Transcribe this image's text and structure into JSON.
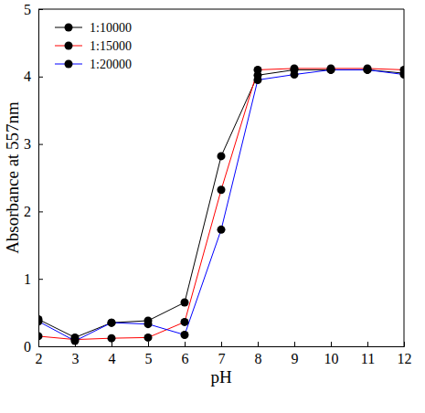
{
  "chart_data": {
    "type": "line",
    "x_label": "pH",
    "y_label": "Absorbance at 557nm",
    "x": [
      2,
      3,
      4,
      5,
      6,
      7,
      8,
      9,
      10,
      11,
      12
    ],
    "series": [
      {
        "name": "1:10000",
        "color": "#000000",
        "marker": "circle",
        "line_style": "solid",
        "values": [
          0.4,
          0.13,
          0.35,
          0.38,
          0.65,
          2.82,
          4.02,
          4.1,
          4.1,
          4.1,
          4.05
        ]
      },
      {
        "name": "1:15000",
        "color": "#ff0000",
        "marker": "circle",
        "line_style": "solid",
        "values": [
          0.15,
          0.1,
          0.12,
          0.13,
          0.36,
          2.32,
          4.1,
          4.12,
          4.12,
          4.12,
          4.1
        ]
      },
      {
        "name": "1:20000",
        "color": "#0000ff",
        "marker": "circle",
        "line_style": "solid",
        "values": [
          0.37,
          0.08,
          0.35,
          0.33,
          0.17,
          1.73,
          3.95,
          4.03,
          4.1,
          4.1,
          4.03
        ]
      }
    ],
    "xlim": [
      2,
      12
    ],
    "ylim": [
      0,
      5
    ],
    "xticks": [
      2,
      3,
      4,
      5,
      6,
      7,
      8,
      9,
      10,
      11,
      12
    ],
    "yticks": [
      0,
      1,
      2,
      3,
      4,
      5
    ],
    "grid": false,
    "legend": "upper-left"
  }
}
